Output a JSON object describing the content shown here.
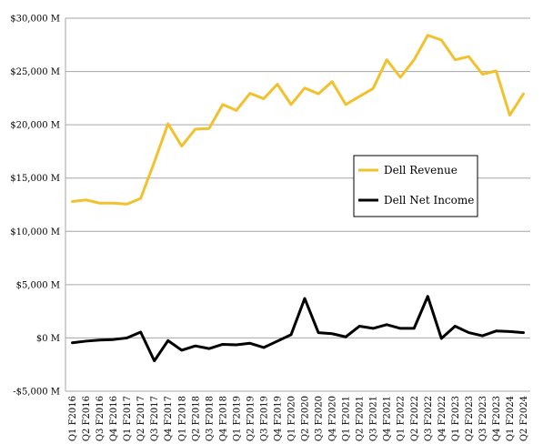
{
  "chart_data": {
    "type": "line",
    "title": "",
    "xlabel": "",
    "ylabel": "",
    "ylim": [
      -5000,
      30000
    ],
    "y_ticks": [
      -5000,
      0,
      5000,
      10000,
      15000,
      20000,
      25000,
      30000
    ],
    "y_tick_labels": [
      "-$5,000 M",
      "$0 M",
      "$5,000 M",
      "$10,000 M",
      "$15,000 M",
      "$20,000 M",
      "$25,000 M",
      "$30,000 M"
    ],
    "grid": "horizontal",
    "legend_position": "right-middle",
    "categories": [
      "Q1 F2016",
      "Q2 F2016",
      "Q3 F2016",
      "Q4 F2016",
      "Q1 F2017",
      "Q2 F2017",
      "Q3 F2017",
      "Q4 F2017",
      "Q1 F2018",
      "Q2 F2018",
      "Q3 F2018",
      "Q4 F2018",
      "Q1 F2019",
      "Q2 F2019",
      "Q3 F2019",
      "Q4 F2019",
      "Q1 F2020",
      "Q2 F2020",
      "Q3 F2020",
      "Q4 F2020",
      "Q1 F2021",
      "Q2 F2021",
      "Q3 F2021",
      "Q4 F2021",
      "Q1 F2022",
      "Q2 F2022",
      "Q3 F2022",
      "Q4 F2022",
      "Q1 F2023",
      "Q2 F2023",
      "Q3 F2023",
      "Q4 F2023",
      "Q1 F2024",
      "Q2 F2024"
    ],
    "series": [
      {
        "name": "Dell Revenue",
        "color": "#f2c12e",
        "values": [
          12800,
          12950,
          12650,
          12650,
          12550,
          13100,
          16500,
          20100,
          18000,
          19600,
          19650,
          21900,
          21350,
          22950,
          22450,
          23800,
          21900,
          23450,
          22900,
          24050,
          21900,
          22650,
          23400,
          26100,
          24450,
          26100,
          28400,
          27950,
          26100,
          26400,
          24750,
          25050,
          20900,
          22900
        ]
      },
      {
        "name": "Dell Net Income",
        "color": "#000000",
        "values": [
          -450,
          -300,
          -200,
          -150,
          0,
          550,
          -2150,
          -250,
          -1150,
          -750,
          -1000,
          -600,
          -650,
          -500,
          -900,
          -300,
          300,
          3700,
          500,
          400,
          100,
          1100,
          900,
          1250,
          900,
          900,
          3900,
          -50,
          1100,
          500,
          200,
          650,
          600,
          500
        ]
      }
    ]
  }
}
